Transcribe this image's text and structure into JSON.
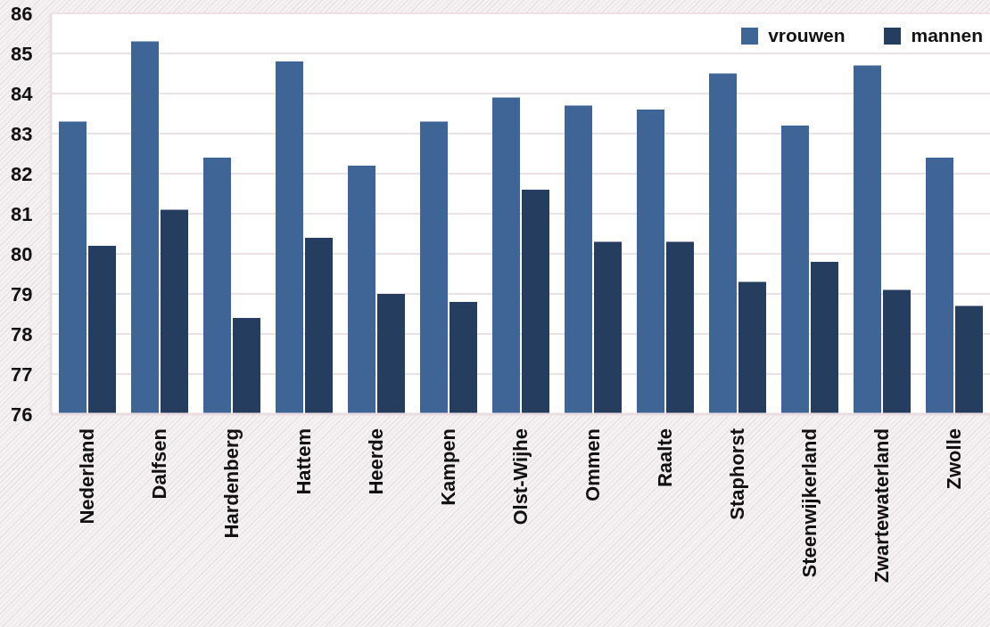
{
  "chart_data": {
    "type": "bar",
    "categories": [
      "Nederland",
      "Dalfsen",
      "Hardenberg",
      "Hattem",
      "Heerde",
      "Kampen",
      "Olst-Wijhe",
      "Ommen",
      "Raalte",
      "Staphorst",
      "Steenwijkerland",
      "Zwartewaterland",
      "Zwolle"
    ],
    "series": [
      {
        "name": "vrouwen",
        "color": "#3f6496",
        "values": [
          83.3,
          85.3,
          82.4,
          84.8,
          82.2,
          83.3,
          83.9,
          83.7,
          83.6,
          84.5,
          83.2,
          84.7,
          82.4
        ]
      },
      {
        "name": "mannen",
        "color": "#253d5e",
        "values": [
          80.2,
          81.1,
          78.4,
          80.4,
          79.0,
          78.8,
          81.6,
          80.3,
          80.3,
          79.3,
          79.8,
          79.1,
          78.7
        ]
      }
    ],
    "ylim": [
      76,
      86
    ],
    "yticks": [
      76,
      77,
      78,
      79,
      80,
      81,
      82,
      83,
      84,
      85,
      86
    ],
    "grid": "y",
    "legend": "top right"
  }
}
